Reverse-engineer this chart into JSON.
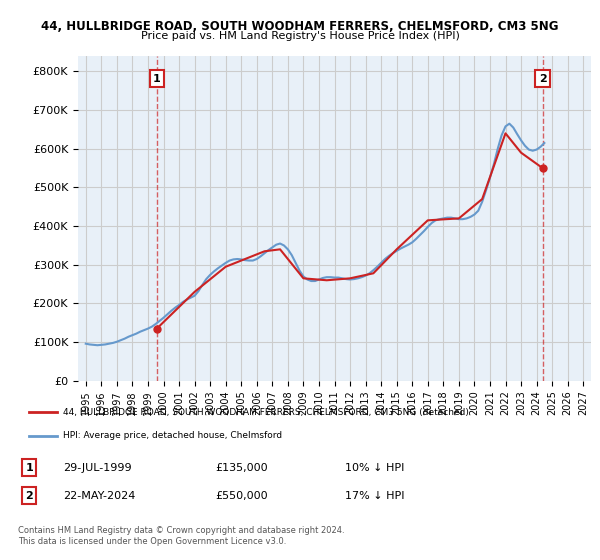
{
  "title": "44, HULLBRIDGE ROAD, SOUTH WOODHAM FERRERS, CHELMSFORD, CM3 5NG",
  "subtitle": "Price paid vs. HM Land Registry's House Price Index (HPI)",
  "background_color": "#ffffff",
  "grid_color": "#cccccc",
  "plot_bg_color": "#e8f0f8",
  "ylabel": "",
  "yticks": [
    0,
    100000,
    200000,
    300000,
    400000,
    500000,
    600000,
    700000,
    800000
  ],
  "ytick_labels": [
    "£0",
    "£100K",
    "£200K",
    "£300K",
    "£400K",
    "£500K",
    "£600K",
    "£700K",
    "£800K"
  ],
  "ylim": [
    0,
    840000
  ],
  "xlim_start": 1994.5,
  "xlim_end": 2027.5,
  "xtick_years": [
    1995,
    1996,
    1997,
    1998,
    1999,
    2000,
    2001,
    2002,
    2003,
    2004,
    2005,
    2006,
    2007,
    2008,
    2009,
    2010,
    2011,
    2012,
    2013,
    2014,
    2015,
    2016,
    2017,
    2018,
    2019,
    2020,
    2021,
    2022,
    2023,
    2024,
    2025,
    2026,
    2027
  ],
  "hpi_line_color": "#6699cc",
  "price_line_color": "#cc2222",
  "sale1_x": 1999.57,
  "sale1_y": 135000,
  "sale2_x": 2024.39,
  "sale2_y": 550000,
  "legend_price_label": "44, HULLBRIDGE ROAD, SOUTH WOODHAM FERRERS, CHELMSFORD, CM3 5NG (detached)",
  "legend_hpi_label": "HPI: Average price, detached house, Chelmsford",
  "table_rows": [
    {
      "num": "1",
      "date": "29-JUL-1999",
      "price": "£135,000",
      "hpi": "10% ↓ HPI"
    },
    {
      "num": "2",
      "date": "22-MAY-2024",
      "price": "£550,000",
      "hpi": "17% ↓ HPI"
    }
  ],
  "footer": "Contains HM Land Registry data © Crown copyright and database right 2024.\nThis data is licensed under the Open Government Licence v3.0.",
  "hpi_data_x": [
    1995.0,
    1995.25,
    1995.5,
    1995.75,
    1996.0,
    1996.25,
    1996.5,
    1996.75,
    1997.0,
    1997.25,
    1997.5,
    1997.75,
    1998.0,
    1998.25,
    1998.5,
    1998.75,
    1999.0,
    1999.25,
    1999.5,
    1999.75,
    2000.0,
    2000.25,
    2000.5,
    2000.75,
    2001.0,
    2001.25,
    2001.5,
    2001.75,
    2002.0,
    2002.25,
    2002.5,
    2002.75,
    2003.0,
    2003.25,
    2003.5,
    2003.75,
    2004.0,
    2004.25,
    2004.5,
    2004.75,
    2005.0,
    2005.25,
    2005.5,
    2005.75,
    2006.0,
    2006.25,
    2006.5,
    2006.75,
    2007.0,
    2007.25,
    2007.5,
    2007.75,
    2008.0,
    2008.25,
    2008.5,
    2008.75,
    2009.0,
    2009.25,
    2009.5,
    2009.75,
    2010.0,
    2010.25,
    2010.5,
    2010.75,
    2011.0,
    2011.25,
    2011.5,
    2011.75,
    2012.0,
    2012.25,
    2012.5,
    2012.75,
    2013.0,
    2013.25,
    2013.5,
    2013.75,
    2014.0,
    2014.25,
    2014.5,
    2014.75,
    2015.0,
    2015.25,
    2015.5,
    2015.75,
    2016.0,
    2016.25,
    2016.5,
    2016.75,
    2017.0,
    2017.25,
    2017.5,
    2017.75,
    2018.0,
    2018.25,
    2018.5,
    2018.75,
    2019.0,
    2019.25,
    2019.5,
    2019.75,
    2020.0,
    2020.25,
    2020.5,
    2020.75,
    2021.0,
    2021.25,
    2021.5,
    2021.75,
    2022.0,
    2022.25,
    2022.5,
    2022.75,
    2023.0,
    2023.25,
    2023.5,
    2023.75,
    2024.0,
    2024.25,
    2024.5
  ],
  "hpi_data_y": [
    96000,
    94000,
    93000,
    92000,
    93000,
    94000,
    96000,
    98000,
    101000,
    105000,
    109000,
    114000,
    118000,
    122000,
    127000,
    131000,
    135000,
    140000,
    147000,
    155000,
    163000,
    172000,
    181000,
    189000,
    196000,
    204000,
    210000,
    215000,
    220000,
    232000,
    248000,
    263000,
    274000,
    283000,
    291000,
    298000,
    305000,
    311000,
    314000,
    315000,
    314000,
    312000,
    311000,
    311000,
    315000,
    322000,
    330000,
    338000,
    345000,
    352000,
    355000,
    350000,
    340000,
    325000,
    305000,
    285000,
    270000,
    262000,
    258000,
    258000,
    262000,
    266000,
    268000,
    268000,
    267000,
    267000,
    265000,
    263000,
    262000,
    263000,
    265000,
    268000,
    272000,
    278000,
    286000,
    295000,
    305000,
    315000,
    323000,
    330000,
    336000,
    342000,
    347000,
    352000,
    358000,
    367000,
    377000,
    387000,
    398000,
    408000,
    415000,
    418000,
    420000,
    422000,
    422000,
    420000,
    418000,
    418000,
    420000,
    424000,
    430000,
    440000,
    463000,
    493000,
    525000,
    560000,
    600000,
    635000,
    658000,
    665000,
    655000,
    638000,
    622000,
    608000,
    598000,
    595000,
    598000,
    605000,
    615000
  ],
  "price_data_x": [
    1999.57,
    2024.39
  ],
  "price_data_y": [
    135000,
    550000
  ],
  "price_line_x": [
    1999.57,
    1999.57,
    2002.0,
    2004.0,
    2006.5,
    2007.5,
    2009.0,
    2010.5,
    2012.0,
    2013.5,
    2015.0,
    2017.0,
    2019.0,
    2020.5,
    2022.0,
    2023.0,
    2024.39
  ],
  "price_line_y": [
    135000,
    135000,
    230000,
    295000,
    335000,
    340000,
    265000,
    260000,
    265000,
    278000,
    340000,
    415000,
    420000,
    470000,
    640000,
    590000,
    550000
  ]
}
